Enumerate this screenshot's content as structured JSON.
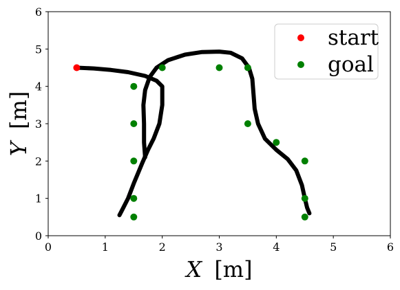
{
  "chart_data": {
    "type": "scatter",
    "xlabel_var": "X",
    "xlabel_unit": "[m]",
    "ylabel_var": "Y",
    "ylabel_unit": "[m]",
    "xlim": [
      0,
      6
    ],
    "ylim": [
      0,
      6
    ],
    "xticks": [
      "0",
      "1",
      "2",
      "3",
      "4",
      "5",
      "6"
    ],
    "yticks": [
      "0",
      "1",
      "2",
      "3",
      "4",
      "5",
      "6"
    ],
    "grid": false,
    "legend_placement": "top-right",
    "series": [
      {
        "name": "start",
        "color": "#ff0000",
        "points": [
          [
            0.5,
            4.5
          ]
        ]
      },
      {
        "name": "goal",
        "color": "#008000",
        "points": [
          [
            1.5,
            4.0
          ],
          [
            1.5,
            3.0
          ],
          [
            1.5,
            2.0
          ],
          [
            1.5,
            1.0
          ],
          [
            1.5,
            0.5
          ],
          [
            2.0,
            4.5
          ],
          [
            3.0,
            4.5
          ],
          [
            3.5,
            4.5
          ],
          [
            3.5,
            3.0
          ],
          [
            4.0,
            2.5
          ],
          [
            4.5,
            2.0
          ],
          [
            4.5,
            1.0
          ],
          [
            4.5,
            0.5
          ]
        ]
      }
    ],
    "trajectories": [
      {
        "color": "#000000",
        "points": [
          [
            0.5,
            4.5
          ],
          [
            0.8,
            4.48
          ],
          [
            1.1,
            4.44
          ],
          [
            1.4,
            4.38
          ],
          [
            1.7,
            4.28
          ],
          [
            1.9,
            4.15
          ],
          [
            2.0,
            4.0
          ],
          [
            2.0,
            3.85
          ],
          [
            2.0,
            3.5
          ],
          [
            1.95,
            3.0
          ],
          [
            1.85,
            2.6
          ],
          [
            1.75,
            2.3
          ],
          [
            1.65,
            1.95
          ],
          [
            1.5,
            1.4
          ],
          [
            1.4,
            1.0
          ],
          [
            1.3,
            0.7
          ],
          [
            1.25,
            0.55
          ]
        ]
      },
      {
        "color": "#000000",
        "points": [
          [
            1.7,
            2.1
          ],
          [
            1.68,
            2.5
          ],
          [
            1.68,
            3.0
          ],
          [
            1.67,
            3.5
          ],
          [
            1.7,
            3.9
          ],
          [
            1.78,
            4.25
          ],
          [
            1.9,
            4.5
          ],
          [
            2.1,
            4.7
          ],
          [
            2.4,
            4.85
          ],
          [
            2.7,
            4.92
          ],
          [
            3.0,
            4.93
          ],
          [
            3.2,
            4.9
          ],
          [
            3.4,
            4.75
          ],
          [
            3.52,
            4.5
          ],
          [
            3.58,
            4.2
          ],
          [
            3.6,
            3.8
          ],
          [
            3.62,
            3.4
          ],
          [
            3.68,
            3.0
          ],
          [
            3.8,
            2.6
          ],
          [
            4.0,
            2.3
          ],
          [
            4.2,
            2.05
          ],
          [
            4.35,
            1.75
          ],
          [
            4.45,
            1.35
          ],
          [
            4.5,
            1.0
          ],
          [
            4.54,
            0.75
          ],
          [
            4.58,
            0.6
          ]
        ]
      }
    ]
  }
}
